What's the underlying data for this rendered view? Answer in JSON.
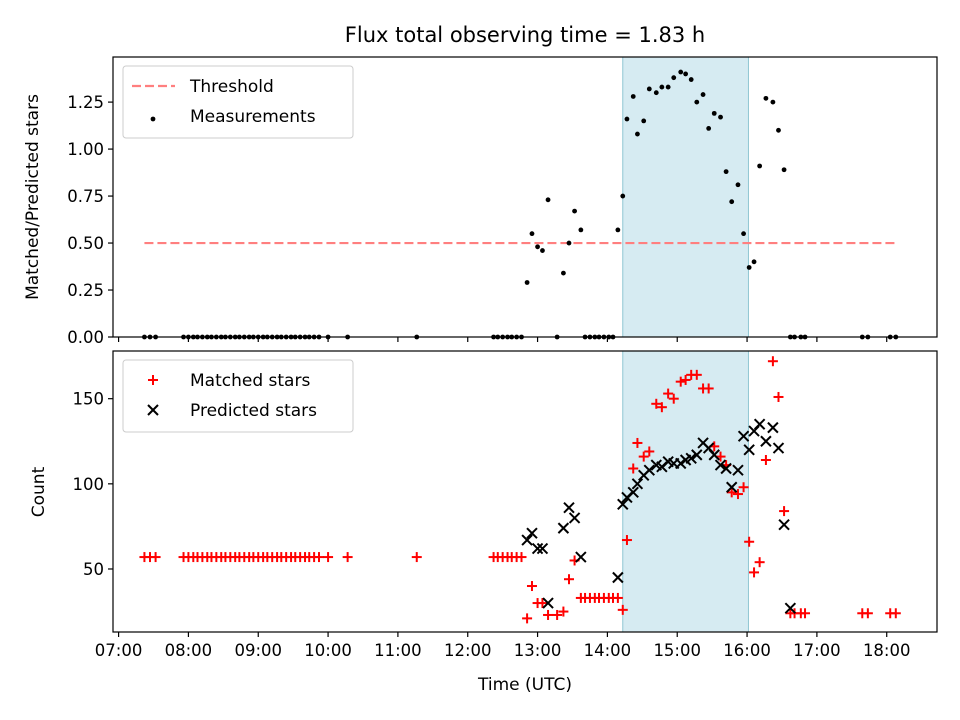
{
  "chart_data": [
    {
      "type": "scatter",
      "title": "Flux total observing time = 1.83 h",
      "xlabel": "",
      "ylabel": "Matched/Predicted stars",
      "xlim": [
        6.92,
        18.72
      ],
      "ylim": [
        0,
        1.49
      ],
      "yticks": [
        0,
        0.25,
        0.5,
        0.75,
        1.0,
        1.25
      ],
      "ytick_labels": [
        "0.00",
        "0.25",
        "0.50",
        "0.75",
        "1.00",
        "1.25"
      ],
      "shaded_region": {
        "x0": 14.22,
        "x1": 16.02,
        "color": "#add8e6"
      },
      "threshold": {
        "name": "Threshold",
        "y": 0.5,
        "x0": 7.37,
        "x1": 18.13,
        "color": "#ff7f7f",
        "style": "dashed"
      },
      "legend_position": "upper-left",
      "series": [
        {
          "name": "Measurements",
          "marker": "dot",
          "color": "#000000",
          "x": [
            7.37,
            7.45,
            7.53,
            7.93,
            8.0,
            8.07,
            8.13,
            8.2,
            8.27,
            8.33,
            8.4,
            8.47,
            8.53,
            8.6,
            8.67,
            8.73,
            8.8,
            8.87,
            8.93,
            9.0,
            9.07,
            9.13,
            9.2,
            9.27,
            9.33,
            9.4,
            9.47,
            9.53,
            9.6,
            9.67,
            9.73,
            9.8,
            9.87,
            10.0,
            10.28,
            11.27,
            12.37,
            12.43,
            12.5,
            12.57,
            12.63,
            12.7,
            12.77,
            12.85,
            12.92,
            13.0,
            13.07,
            13.15,
            13.28,
            13.37,
            13.45,
            13.53,
            13.62,
            13.68,
            13.75,
            13.82,
            13.88,
            13.95,
            14.02,
            14.08,
            14.15,
            14.22,
            14.28,
            14.37,
            14.43,
            14.52,
            14.6,
            14.7,
            14.78,
            14.87,
            14.95,
            15.05,
            15.12,
            15.2,
            15.28,
            15.37,
            15.45,
            15.53,
            15.62,
            15.7,
            15.78,
            15.87,
            15.95,
            16.03,
            16.1,
            16.18,
            16.27,
            16.37,
            16.45,
            16.53,
            16.62,
            16.68,
            16.77,
            16.83,
            17.65,
            17.73,
            18.05,
            18.13
          ],
          "y": [
            0,
            0,
            0,
            0,
            0,
            0,
            0,
            0,
            0,
            0,
            0,
            0,
            0,
            0,
            0,
            0,
            0,
            0,
            0,
            0,
            0,
            0,
            0,
            0,
            0,
            0,
            0,
            0,
            0,
            0,
            0,
            0,
            0,
            0,
            0,
            0,
            0,
            0,
            0,
            0,
            0,
            0,
            0,
            0.29,
            0.55,
            0.48,
            0.46,
            0.73,
            0,
            0.34,
            0.5,
            0.67,
            0.57,
            0,
            0,
            0,
            0,
            0,
            0,
            0,
            0.57,
            0.75,
            1.16,
            1.28,
            1.08,
            1.15,
            1.32,
            1.3,
            1.33,
            1.33,
            1.38,
            1.41,
            1.4,
            1.37,
            1.25,
            1.29,
            1.11,
            1.19,
            1.17,
            0.88,
            0.72,
            0.81,
            0.55,
            0.37,
            0.4,
            0.91,
            1.27,
            1.25,
            1.1,
            0.89,
            0,
            0,
            0,
            0,
            0,
            0,
            0,
            0
          ]
        }
      ]
    },
    {
      "type": "scatter",
      "title": "",
      "xlabel": "Time (UTC)",
      "ylabel": "Count",
      "xlim": [
        6.92,
        18.72
      ],
      "ylim": [
        13,
        178
      ],
      "yticks": [
        50,
        100,
        150
      ],
      "ytick_labels": [
        "50",
        "100",
        "150"
      ],
      "xticks": [
        7,
        8,
        9,
        10,
        11,
        12,
        13,
        14,
        15,
        16,
        17,
        18
      ],
      "xtick_labels": [
        "07:00",
        "08:00",
        "09:00",
        "10:00",
        "11:00",
        "12:00",
        "13:00",
        "14:00",
        "15:00",
        "16:00",
        "17:00",
        "18:00"
      ],
      "shaded_region": {
        "x0": 14.22,
        "x1": 16.02,
        "color": "#add8e6"
      },
      "legend_position": "upper-left",
      "series": [
        {
          "name": "Matched stars",
          "marker": "plus",
          "color": "#ff0000",
          "x": [
            7.37,
            7.45,
            7.53,
            7.93,
            8.0,
            8.07,
            8.13,
            8.2,
            8.27,
            8.33,
            8.4,
            8.47,
            8.53,
            8.6,
            8.67,
            8.73,
            8.8,
            8.87,
            8.93,
            9.0,
            9.07,
            9.13,
            9.2,
            9.27,
            9.33,
            9.4,
            9.47,
            9.53,
            9.6,
            9.67,
            9.73,
            9.8,
            9.87,
            10.0,
            10.28,
            11.27,
            12.37,
            12.43,
            12.5,
            12.57,
            12.63,
            12.7,
            12.77,
            12.85,
            12.92,
            13.0,
            13.07,
            13.15,
            13.28,
            13.37,
            13.45,
            13.53,
            13.62,
            13.68,
            13.75,
            13.82,
            13.88,
            13.95,
            14.02,
            14.08,
            14.15,
            14.22,
            14.28,
            14.37,
            14.43,
            14.52,
            14.6,
            14.7,
            14.78,
            14.87,
            14.95,
            15.05,
            15.12,
            15.2,
            15.28,
            15.37,
            15.45,
            15.53,
            15.62,
            15.7,
            15.78,
            15.87,
            15.95,
            16.03,
            16.1,
            16.18,
            16.27,
            16.37,
            16.45,
            16.53,
            16.62,
            16.68,
            16.77,
            16.83,
            17.65,
            17.73,
            18.05,
            18.13
          ],
          "y": [
            57,
            57,
            57,
            57,
            57,
            57,
            57,
            57,
            57,
            57,
            57,
            57,
            57,
            57,
            57,
            57,
            57,
            57,
            57,
            57,
            57,
            57,
            57,
            57,
            57,
            57,
            57,
            57,
            57,
            57,
            57,
            57,
            57,
            57,
            57,
            57,
            57,
            57,
            57,
            57,
            57,
            57,
            57,
            21,
            40,
            30,
            30,
            23,
            23,
            25,
            44,
            55,
            33,
            33,
            33,
            33,
            33,
            33,
            33,
            33,
            33,
            26,
            67,
            109,
            124,
            116,
            119,
            147,
            145,
            153,
            150,
            160,
            161,
            164,
            164,
            156,
            156,
            122,
            116,
            111,
            95,
            94,
            98,
            66,
            48,
            54,
            114,
            172,
            151,
            84,
            24,
            24,
            24,
            24,
            24,
            24,
            24,
            24
          ]
        },
        {
          "name": "Predicted stars",
          "marker": "x",
          "color": "#000000",
          "x": [
            12.85,
            12.92,
            13.0,
            13.07,
            13.15,
            13.37,
            13.45,
            13.53,
            13.62,
            14.15,
            14.22,
            14.28,
            14.37,
            14.43,
            14.52,
            14.6,
            14.7,
            14.78,
            14.87,
            14.95,
            15.05,
            15.12,
            15.2,
            15.28,
            15.37,
            15.45,
            15.53,
            15.62,
            15.7,
            15.78,
            15.87,
            15.95,
            16.03,
            16.1,
            16.18,
            16.27,
            16.37,
            16.45,
            16.53,
            16.62
          ],
          "y": [
            67,
            71,
            62,
            62,
            30,
            74,
            86,
            80,
            57,
            45,
            88,
            92,
            95,
            100,
            105,
            108,
            111,
            110,
            113,
            112,
            112,
            114,
            115,
            117,
            124,
            121,
            117,
            111,
            109,
            98,
            108,
            128,
            120,
            131,
            135,
            125,
            133,
            121,
            76,
            27
          ]
        }
      ]
    }
  ]
}
